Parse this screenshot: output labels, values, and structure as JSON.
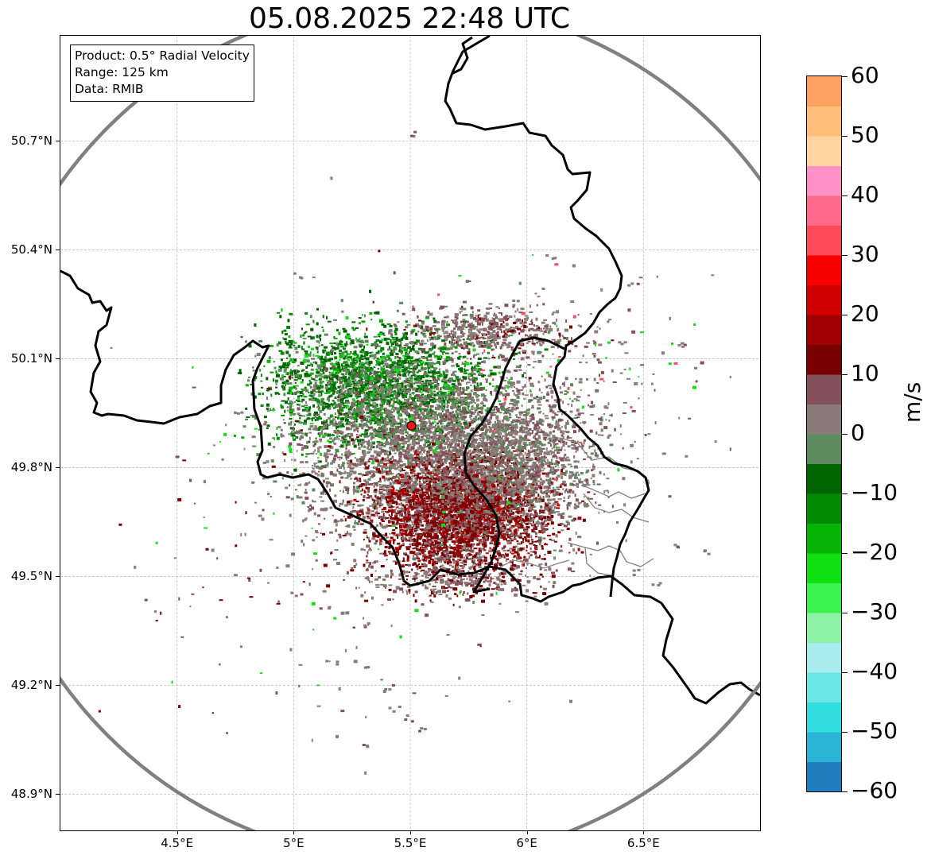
{
  "title": "05.08.2025 22:48 UTC",
  "info": {
    "product": "Product: 0.5° Radial Velocity",
    "range": "Range: 125 km",
    "data": "Data: RMIB"
  },
  "map": {
    "lon_range": [
      4.0,
      7.0
    ],
    "lat_range": [
      48.8,
      50.99
    ],
    "lat_ticks": [
      "50.7°N",
      "50.4°N",
      "50.1°N",
      "49.8°N",
      "49.5°N",
      "49.2°N",
      "48.9°N"
    ],
    "lat_tick_values": [
      50.7,
      50.4,
      50.1,
      49.8,
      49.5,
      49.2,
      48.9
    ],
    "lon_ticks": [
      "4.5°E",
      "5°E",
      "5.5°E",
      "6°E",
      "6.5°E"
    ],
    "lon_tick_values": [
      4.5,
      5.0,
      5.5,
      6.0,
      6.5
    ],
    "radar_site": {
      "lon": 5.505,
      "lat": 49.915,
      "color": "#e41a1c"
    },
    "range_ring_color": "#808080",
    "border_color": "#000000",
    "gridline_style": "dashed-grey"
  },
  "colorbar": {
    "label": "m/s",
    "min": -60,
    "max": 60,
    "ticks": [
      "60",
      "50",
      "40",
      "30",
      "20",
      "10",
      "0",
      "−10",
      "−20",
      "−30",
      "−40",
      "−50",
      "−60"
    ],
    "tick_values": [
      60,
      50,
      40,
      30,
      20,
      10,
      0,
      -10,
      -20,
      -30,
      -40,
      -50,
      -60
    ],
    "bands": [
      {
        "from": -60,
        "to": -55,
        "color": "#1f7fbf"
      },
      {
        "from": -55,
        "to": -50,
        "color": "#29b4d6"
      },
      {
        "from": -50,
        "to": -45,
        "color": "#32dede"
      },
      {
        "from": -45,
        "to": -40,
        "color": "#6ae6e6"
      },
      {
        "from": -40,
        "to": -35,
        "color": "#a8ecee"
      },
      {
        "from": -35,
        "to": -30,
        "color": "#8ef0a4"
      },
      {
        "from": -30,
        "to": -25,
        "color": "#3af24a"
      },
      {
        "from": -25,
        "to": -20,
        "color": "#10e010"
      },
      {
        "from": -20,
        "to": -15,
        "color": "#06b506"
      },
      {
        "from": -15,
        "to": -10,
        "color": "#038c03"
      },
      {
        "from": -10,
        "to": -5,
        "color": "#006400"
      },
      {
        "from": -5,
        "to": 0,
        "color": "#5e8a60"
      },
      {
        "from": 0,
        "to": 5,
        "color": "#8a7a78"
      },
      {
        "from": 5,
        "to": 10,
        "color": "#84505a"
      },
      {
        "from": 10,
        "to": 15,
        "color": "#7a0000"
      },
      {
        "from": 15,
        "to": 20,
        "color": "#a00000"
      },
      {
        "from": 20,
        "to": 25,
        "color": "#d00000"
      },
      {
        "from": 25,
        "to": 30,
        "color": "#f80000"
      },
      {
        "from": 30,
        "to": 35,
        "color": "#ff4a5a"
      },
      {
        "from": 35,
        "to": 40,
        "color": "#ff6a8a"
      },
      {
        "from": 40,
        "to": 45,
        "color": "#ff90c8"
      },
      {
        "from": 45,
        "to": 50,
        "color": "#ffd4a0"
      },
      {
        "from": 50,
        "to": 55,
        "color": "#ffbe7a"
      },
      {
        "from": 55,
        "to": 60,
        "color": "#ffa060"
      }
    ]
  }
}
